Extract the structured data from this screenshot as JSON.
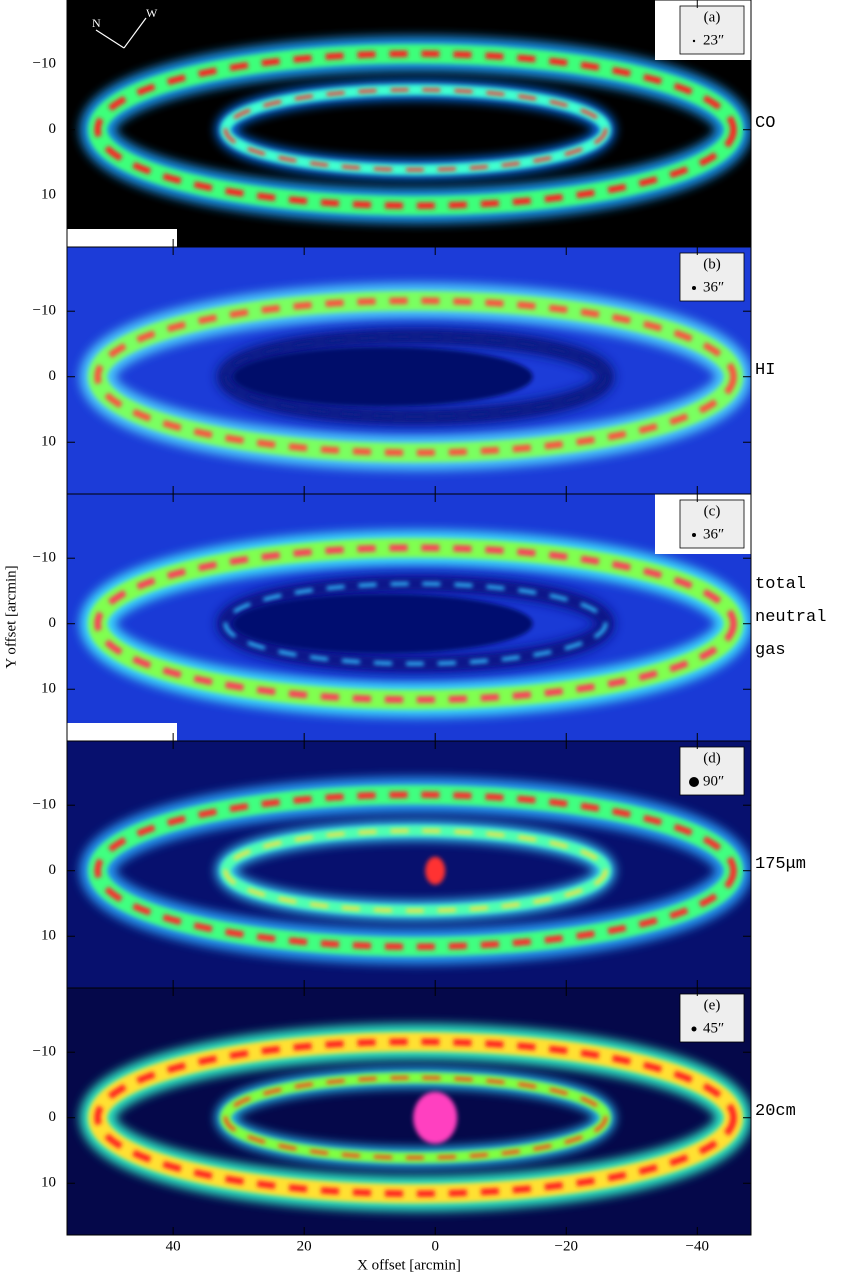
{
  "chart_data": {
    "type": "image-panels",
    "xlabel": "X offset [arcmin]",
    "ylabel": "Y offset [arcmin]",
    "xlim": [
      56.2,
      -48.2
    ],
    "ylim": [
      -19.8,
      17.9
    ],
    "xticks": [
      40,
      20,
      0,
      {
        "value": -20,
        "label": "−20"
      },
      {
        "value": -40,
        "label": "−40"
      }
    ],
    "yticks": [
      {
        "value": -10,
        "label": "−10"
      },
      0,
      10
    ],
    "compass": [
      "N",
      "W"
    ],
    "panels": [
      {
        "tag": "(a)",
        "beam": "23″",
        "label": "CO"
      },
      {
        "tag": "(b)",
        "beam": "36″",
        "label": "HI"
      },
      {
        "tag": "(c)",
        "beam": "36″",
        "label": "total neutral gas"
      },
      {
        "tag": "(d)",
        "beam": "90″",
        "label": "175μm"
      },
      {
        "tag": "(e)",
        "beam": "45″",
        "label": "20cm"
      }
    ]
  }
}
